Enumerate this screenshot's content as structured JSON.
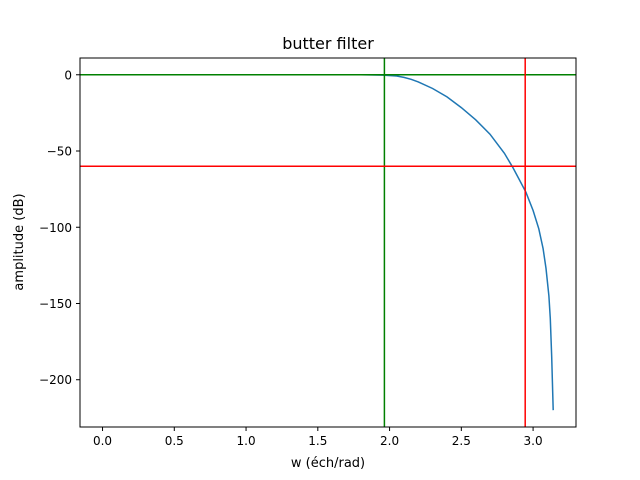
{
  "chart_data": {
    "type": "line",
    "title": "butter filter",
    "xlabel": "w (éch/rad)",
    "ylabel": "amplitude (dB)",
    "xlim": [
      -0.157,
      3.299
    ],
    "ylim": [
      -231.0,
      11.0
    ],
    "xticks": [
      0.0,
      0.5,
      1.0,
      1.5,
      2.0,
      2.5,
      3.0
    ],
    "xtick_labels": [
      "0.0",
      "0.5",
      "1.0",
      "1.5",
      "2.0",
      "2.5",
      "3.0"
    ],
    "yticks": [
      0,
      -50,
      -100,
      -150,
      -200
    ],
    "ytick_labels": [
      "0",
      "−50",
      "−100",
      "−150",
      "−200"
    ],
    "grid": false,
    "series": [
      {
        "color": "#1f77b4",
        "x": [
          0.0,
          0.5,
          1.0,
          1.5,
          1.8,
          1.95,
          2.05,
          2.1,
          2.15,
          2.2,
          2.3,
          2.4,
          2.5,
          2.6,
          2.7,
          2.8,
          2.86,
          2.9,
          2.95,
          3.0,
          3.04,
          3.07,
          3.09,
          3.11,
          3.12,
          3.13,
          3.14
        ],
        "y": [
          0,
          0,
          0,
          0,
          0,
          -0.2,
          -0.8,
          -1.7,
          -3.0,
          -4.7,
          -9.0,
          -14.5,
          -21.5,
          -29.5,
          -39.0,
          -51.5,
          -61.0,
          -68.0,
          -77.0,
          -89.0,
          -101.0,
          -114.0,
          -127.0,
          -145.0,
          -160.0,
          -185.0,
          -220.0
        ]
      }
    ],
    "reference_lines": [
      {
        "orientation": "horizontal",
        "value": 0,
        "color": "#008000"
      },
      {
        "orientation": "vertical",
        "value": 1.964,
        "color": "#008000"
      },
      {
        "orientation": "horizontal",
        "value": -60,
        "color": "#ff0000"
      },
      {
        "orientation": "vertical",
        "value": 2.945,
        "color": "#ff0000"
      }
    ]
  }
}
